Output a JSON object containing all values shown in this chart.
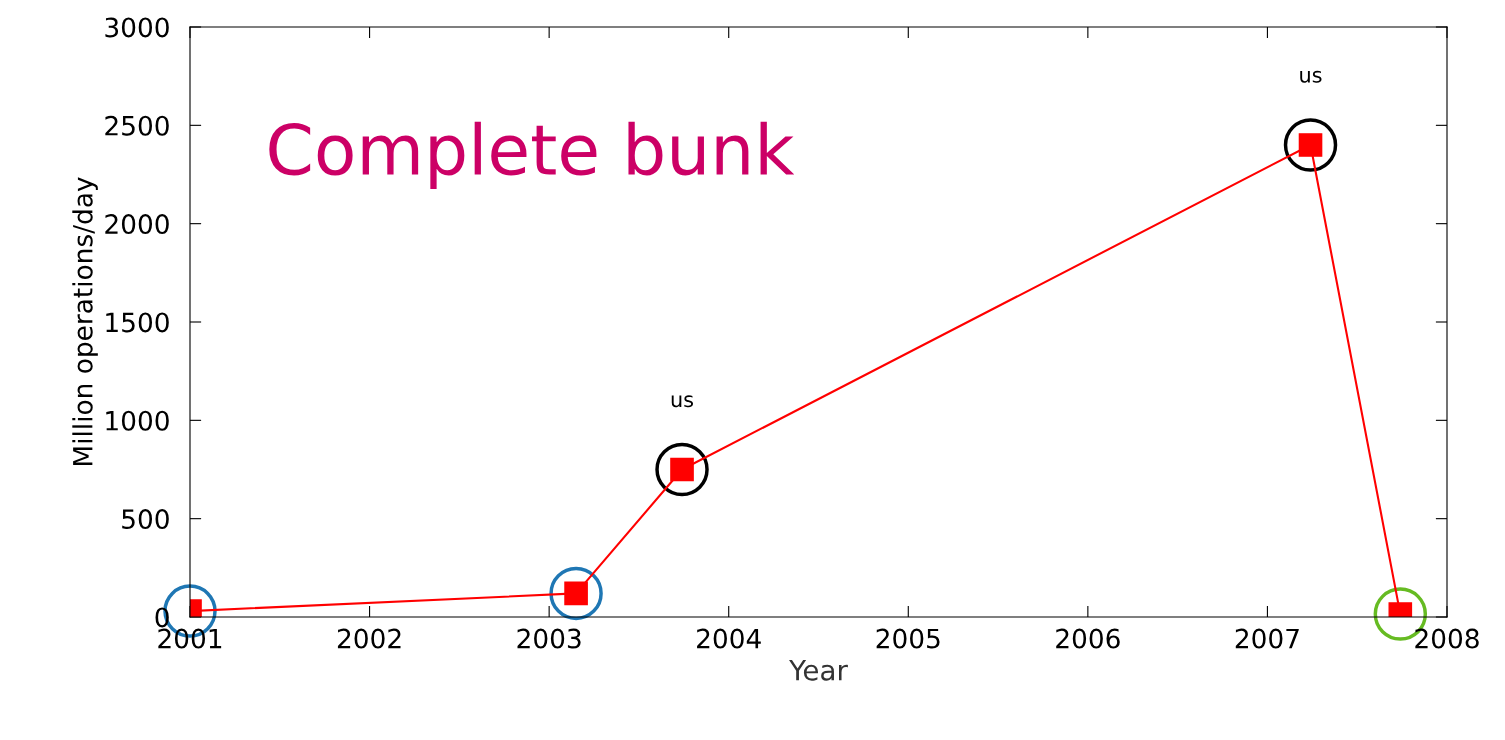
{
  "chart_data": {
    "type": "line",
    "xlabel": "Year",
    "ylabel": "Million operations/day",
    "x": [
      2001.0,
      2003.15,
      2003.74,
      2007.24,
      2007.74
    ],
    "series": [
      {
        "color": "#ff0000",
        "values": [
          30,
          120,
          750,
          2400,
          15
        ]
      }
    ],
    "marker": "square",
    "line_style": "solid",
    "grid": false,
    "legend": false,
    "xlim": [
      2001,
      2008
    ],
    "xticks": [
      2001,
      2002,
      2003,
      2004,
      2005,
      2006,
      2007,
      2008
    ],
    "ylim": [
      0,
      3000
    ],
    "yticks": [
      0,
      500,
      1000,
      1500,
      2000,
      2500,
      3000
    ],
    "annotations": [
      "Complete bunk",
      {
        "text": "us",
        "x": 2003.74,
        "y": 750
      },
      {
        "text": "us",
        "x": 2007.24,
        "y": 2400
      }
    ]
  }
}
